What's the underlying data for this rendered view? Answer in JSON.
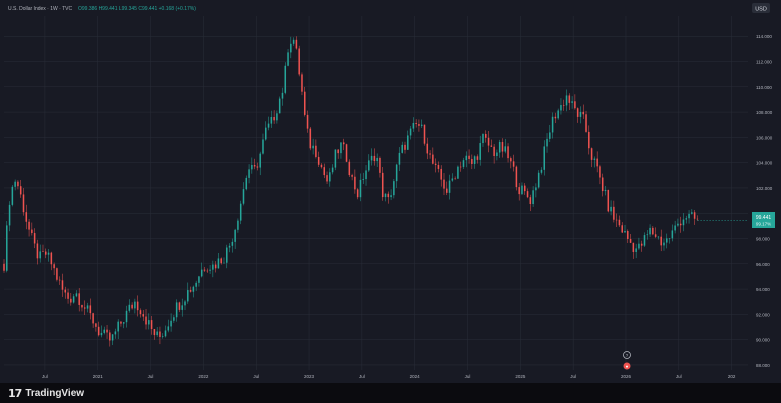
{
  "legend": {
    "symbol_line": "U.S. Dollar Index · 1W · TVC",
    "ohlc_text": "O99.386 H99.441 L99.345 C99.441 +0.168 (+0.17%)"
  },
  "currency_button": "USD",
  "last_price_label": {
    "price": "99.441",
    "sub": "99.17%"
  },
  "brand": {
    "logo_mark": "17",
    "name": "TradingView"
  },
  "markers": {
    "event_marker_1": "?",
    "event_marker_2": "●"
  },
  "colors": {
    "background": "#181a24",
    "grid": "#2a2e39",
    "up": "#26a69a",
    "down": "#ef5350",
    "text": "#b2b5be",
    "price_label_bg": "#26a69a"
  },
  "chart_data": {
    "type": "candlestick",
    "title": "U.S. Dollar Index · 1W · TVC",
    "ylim": [
      87.6,
      115.6
    ],
    "y_ticks": [
      "114.000",
      "112.000",
      "110.000",
      "108.000",
      "106.000",
      "104.000",
      "102.000",
      "100.000",
      "98.000",
      "96.000",
      "94.000",
      "92.000",
      "90.000",
      "88.000"
    ],
    "x_ticks": [
      "Jul",
      "2021",
      "Jul",
      "2022",
      "Jul",
      "2023",
      "Jul",
      "2024",
      "Jul",
      "2025",
      "Jul",
      "2026",
      "Jul",
      "202"
    ],
    "x_tick_positions": [
      0.055,
      0.126,
      0.197,
      0.268,
      0.339,
      0.41,
      0.481,
      0.552,
      0.623,
      0.694,
      0.765,
      0.836,
      0.907,
      0.978
    ],
    "grid": true,
    "series": [
      {
        "name": "U.S. Dollar Index",
        "kind": "candlestick_path",
        "points_close": [
          [
            0.0,
            96.0
          ],
          [
            0.008,
            101.5
          ],
          [
            0.016,
            102.8
          ],
          [
            0.024,
            101.0
          ],
          [
            0.032,
            99.0
          ],
          [
            0.04,
            97.4
          ],
          [
            0.048,
            96.4
          ],
          [
            0.056,
            96.8
          ],
          [
            0.064,
            96.0
          ],
          [
            0.072,
            94.8
          ],
          [
            0.08,
            93.7
          ],
          [
            0.088,
            93.2
          ],
          [
            0.096,
            93.8
          ],
          [
            0.104,
            93.0
          ],
          [
            0.112,
            92.2
          ],
          [
            0.12,
            91.5
          ],
          [
            0.128,
            90.6
          ],
          [
            0.136,
            90.2
          ],
          [
            0.144,
            89.9
          ],
          [
            0.152,
            90.8
          ],
          [
            0.16,
            91.6
          ],
          [
            0.168,
            92.4
          ],
          [
            0.176,
            93.0
          ],
          [
            0.184,
            92.4
          ],
          [
            0.192,
            91.5
          ],
          [
            0.2,
            90.6
          ],
          [
            0.208,
            90.1
          ],
          [
            0.216,
            90.8
          ],
          [
            0.224,
            91.8
          ],
          [
            0.232,
            92.6
          ],
          [
            0.24,
            93.2
          ],
          [
            0.248,
            93.9
          ],
          [
            0.256,
            94.4
          ],
          [
            0.264,
            95.4
          ],
          [
            0.272,
            96.0
          ],
          [
            0.28,
            95.8
          ],
          [
            0.288,
            96.2
          ],
          [
            0.296,
            96.6
          ],
          [
            0.304,
            97.6
          ],
          [
            0.312,
            99.2
          ],
          [
            0.32,
            101.4
          ],
          [
            0.328,
            103.6
          ],
          [
            0.336,
            103.2
          ],
          [
            0.344,
            104.6
          ],
          [
            0.352,
            106.5
          ],
          [
            0.36,
            107.2
          ],
          [
            0.368,
            108.6
          ],
          [
            0.376,
            110.1
          ],
          [
            0.382,
            113.3
          ],
          [
            0.388,
            114.1
          ],
          [
            0.394,
            112.3
          ],
          [
            0.4,
            109.8
          ],
          [
            0.406,
            106.6
          ],
          [
            0.412,
            105.4
          ],
          [
            0.42,
            104.9
          ],
          [
            0.428,
            103.4
          ],
          [
            0.436,
            102.3
          ],
          [
            0.444,
            104.3
          ],
          [
            0.452,
            105.4
          ],
          [
            0.46,
            104.6
          ],
          [
            0.468,
            102.6
          ],
          [
            0.476,
            101.5
          ],
          [
            0.484,
            103.2
          ],
          [
            0.492,
            104.0
          ],
          [
            0.5,
            104.9
          ],
          [
            0.508,
            101.8
          ],
          [
            0.516,
            100.8
          ],
          [
            0.524,
            102.6
          ],
          [
            0.532,
            104.6
          ],
          [
            0.54,
            105.6
          ],
          [
            0.548,
            106.5
          ],
          [
            0.556,
            107.1
          ],
          [
            0.564,
            106.3
          ],
          [
            0.572,
            104.5
          ],
          [
            0.58,
            103.4
          ],
          [
            0.588,
            102.6
          ],
          [
            0.596,
            101.7
          ],
          [
            0.604,
            102.9
          ],
          [
            0.612,
            103.9
          ],
          [
            0.62,
            104.4
          ],
          [
            0.628,
            103.8
          ],
          [
            0.636,
            104.7
          ],
          [
            0.644,
            105.9
          ],
          [
            0.652,
            105.3
          ],
          [
            0.66,
            104.8
          ],
          [
            0.668,
            105.2
          ],
          [
            0.676,
            104.6
          ],
          [
            0.684,
            103.5
          ],
          [
            0.692,
            102.0
          ],
          [
            0.7,
            101.5
          ],
          [
            0.708,
            101.1
          ],
          [
            0.716,
            102.6
          ],
          [
            0.724,
            104.2
          ],
          [
            0.732,
            106.3
          ],
          [
            0.74,
            107.8
          ],
          [
            0.748,
            108.4
          ],
          [
            0.756,
            109.3
          ],
          [
            0.764,
            108.4
          ],
          [
            0.772,
            107.8
          ],
          [
            0.78,
            107.2
          ],
          [
            0.788,
            104.8
          ],
          [
            0.796,
            103.6
          ],
          [
            0.804,
            102.2
          ],
          [
            0.812,
            100.6
          ],
          [
            0.82,
            99.6
          ],
          [
            0.828,
            99.0
          ],
          [
            0.836,
            98.2
          ],
          [
            0.844,
            97.5
          ],
          [
            0.852,
            97.1
          ],
          [
            0.86,
            97.8
          ],
          [
            0.868,
            98.6
          ],
          [
            0.876,
            98.3
          ],
          [
            0.884,
            97.7
          ],
          [
            0.892,
            97.9
          ],
          [
            0.9,
            98.6
          ],
          [
            0.908,
            99.4
          ],
          [
            0.916,
            99.8
          ],
          [
            0.924,
            99.6
          ],
          [
            0.932,
            99.441
          ]
        ]
      }
    ]
  }
}
